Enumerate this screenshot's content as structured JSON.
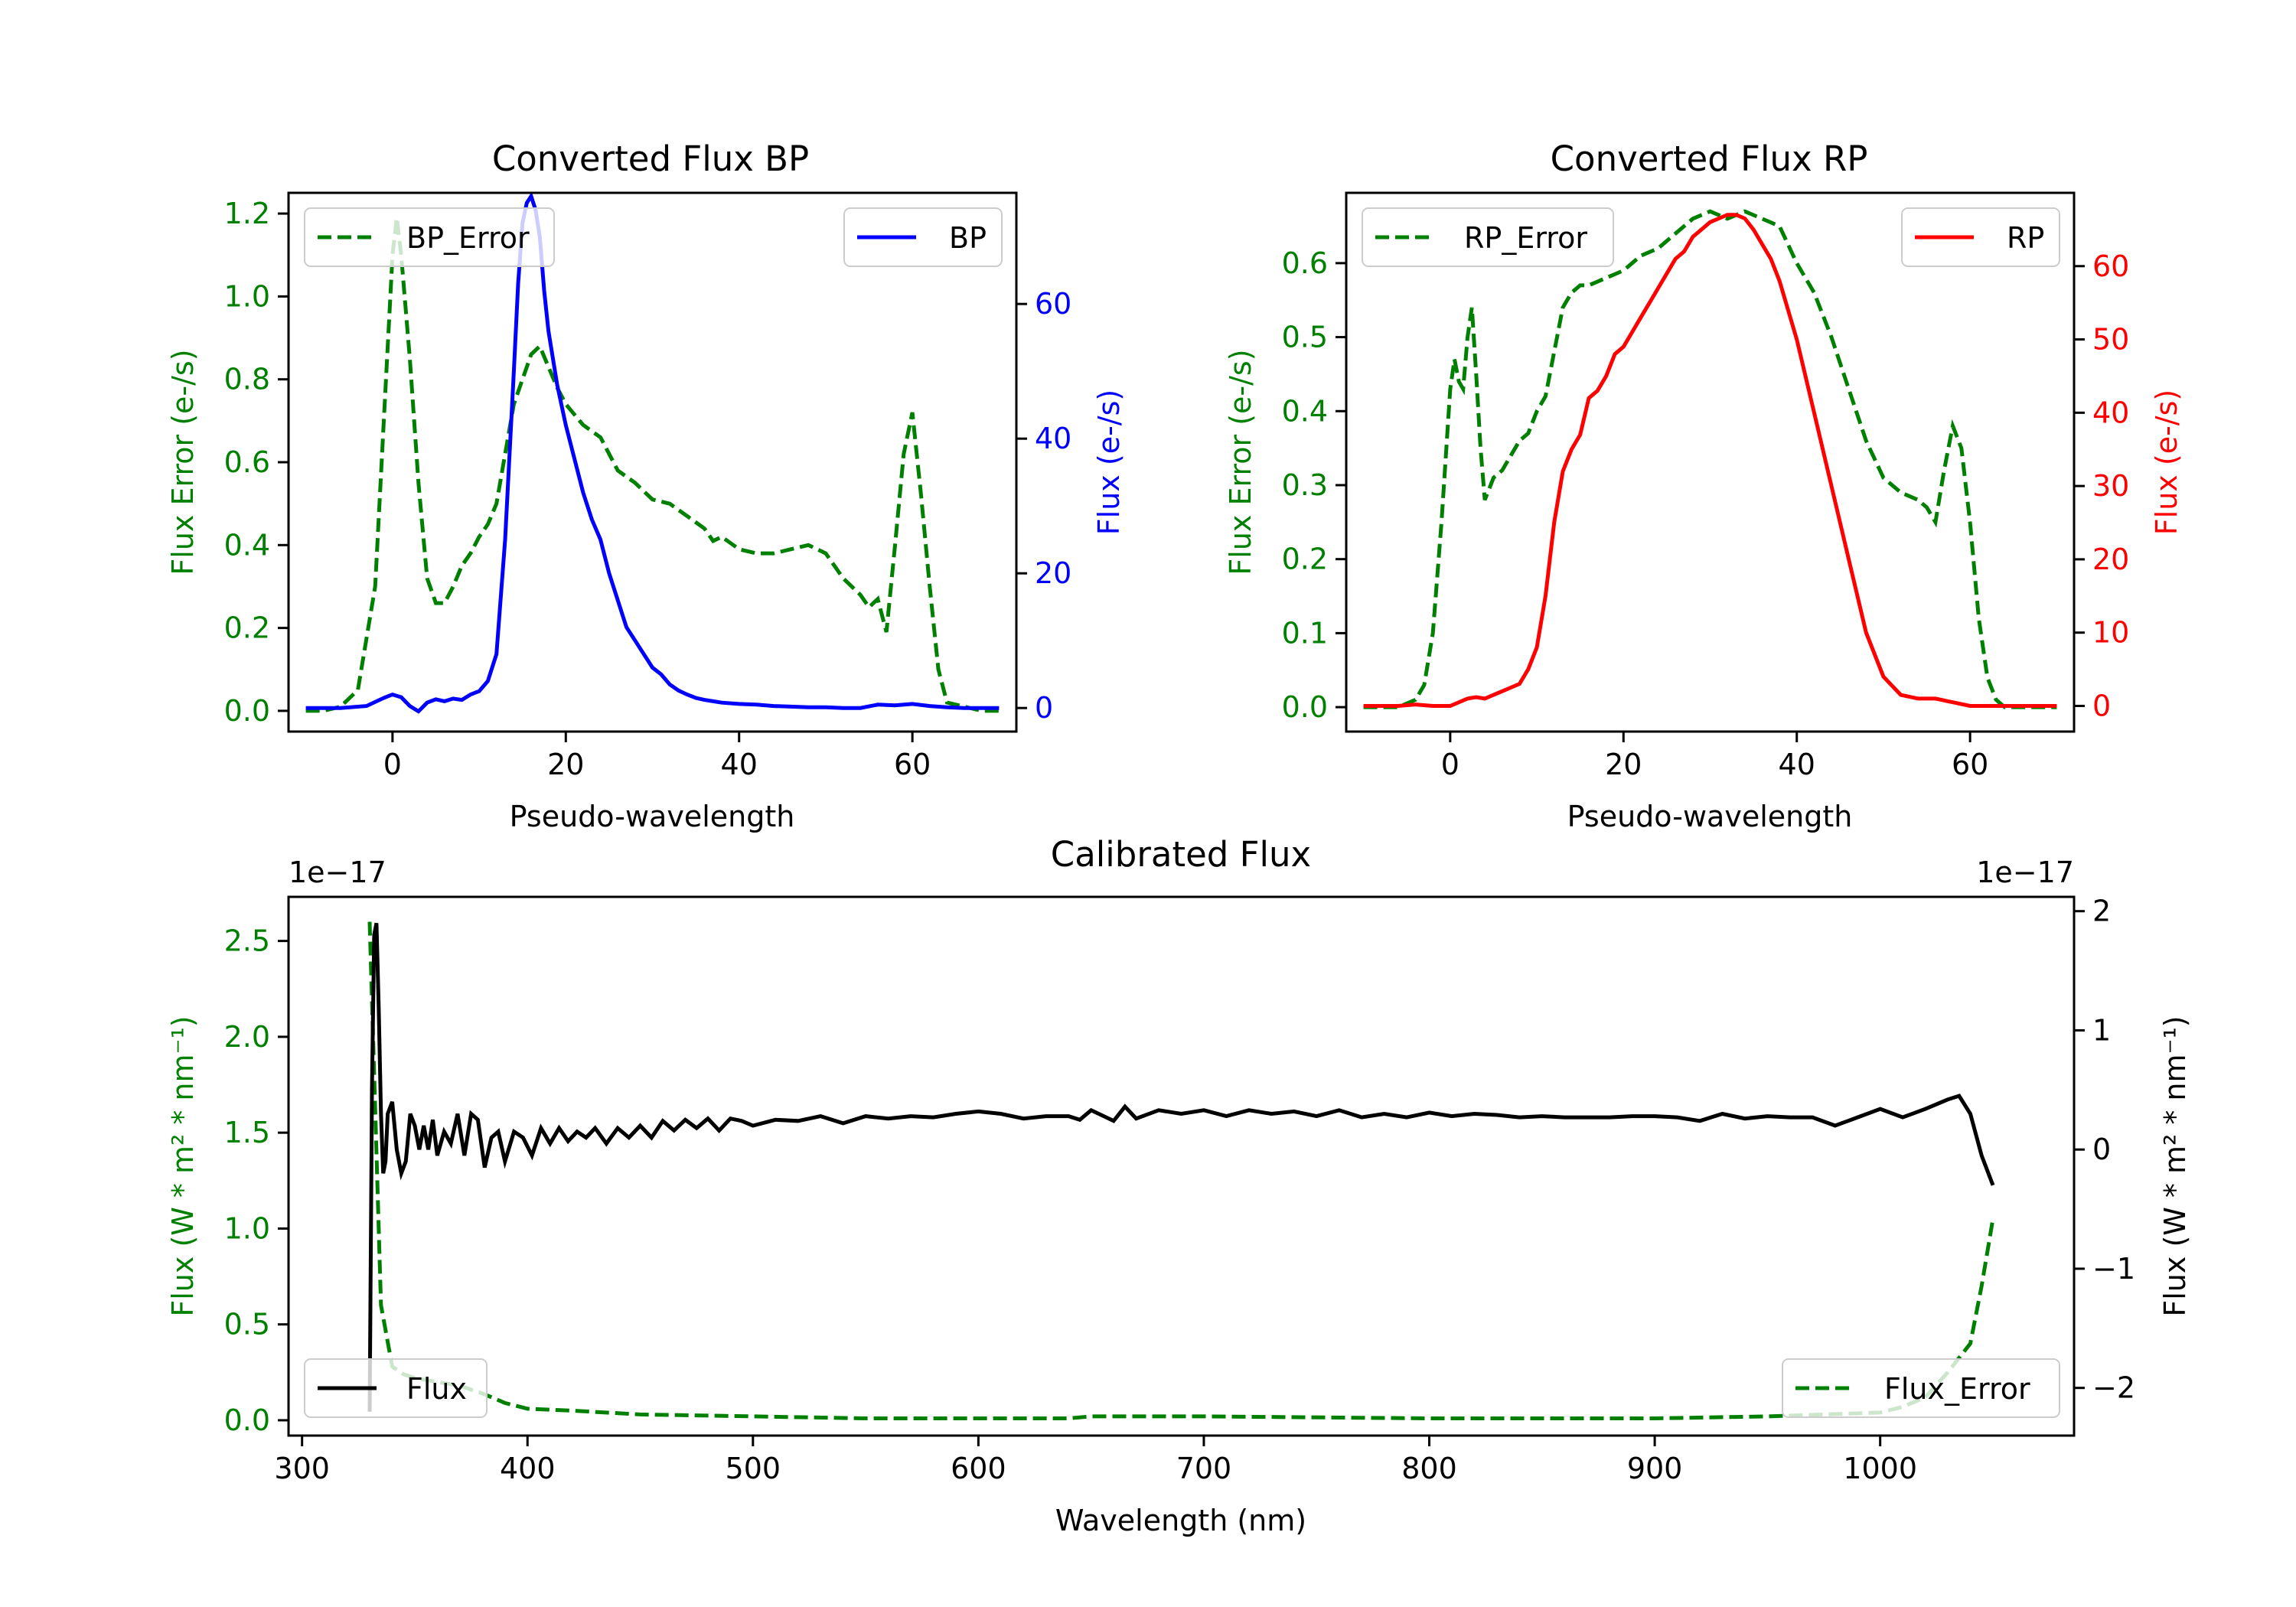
{
  "colors": {
    "green": "#008000",
    "blue": "#0000ff",
    "red": "#ff0000",
    "black": "#000000"
  },
  "chart_data": [
    {
      "id": "bp",
      "type": "line",
      "title": "Converted Flux BP",
      "xlabel": "Pseudo-wavelength",
      "ylabel_left": "Flux Error (e-/s)",
      "ylabel_right": "Flux (e-/s)",
      "xlim": [
        -12,
        72
      ],
      "ylim_left": [
        -0.05,
        1.25
      ],
      "ylim_right": [
        -3.5,
        76.5
      ],
      "xticks": [
        0,
        20,
        40,
        60
      ],
      "yticks_left": [
        0.0,
        0.2,
        0.4,
        0.6,
        0.8,
        1.0,
        1.2
      ],
      "yticks_right": [
        0,
        20,
        40,
        60
      ],
      "series": [
        {
          "name": "BP_Error",
          "axis": "left",
          "color": "green",
          "style": "dashed",
          "x": [
            -10,
            -8,
            -6,
            -4,
            -2,
            -1,
            0,
            0.5,
            1,
            2,
            3,
            4,
            5,
            6,
            7,
            8,
            9,
            10,
            11,
            12,
            13,
            14,
            15,
            16,
            17,
            18,
            19,
            20,
            22,
            24,
            26,
            28,
            30,
            32,
            34,
            36,
            37,
            38,
            40,
            42,
            44,
            46,
            48,
            50,
            52,
            54,
            55,
            56,
            57,
            58,
            59,
            60,
            61,
            62,
            63,
            64,
            66,
            68,
            70
          ],
          "y": [
            0,
            0,
            0.01,
            0.05,
            0.3,
            0.7,
            1.1,
            1.19,
            1.1,
            0.85,
            0.55,
            0.32,
            0.26,
            0.26,
            0.3,
            0.35,
            0.38,
            0.42,
            0.45,
            0.5,
            0.62,
            0.74,
            0.8,
            0.86,
            0.88,
            0.83,
            0.78,
            0.74,
            0.69,
            0.66,
            0.58,
            0.55,
            0.51,
            0.5,
            0.47,
            0.44,
            0.41,
            0.42,
            0.39,
            0.38,
            0.38,
            0.39,
            0.4,
            0.38,
            0.32,
            0.28,
            0.25,
            0.27,
            0.19,
            0.4,
            0.62,
            0.72,
            0.52,
            0.3,
            0.1,
            0.02,
            0.01,
            0.0,
            0.0
          ]
        },
        {
          "name": "BP",
          "axis": "right",
          "color": "blue",
          "style": "solid",
          "x": [
            -10,
            -6,
            -3,
            -1,
            0,
            1,
            2,
            3,
            4,
            5,
            6,
            7,
            8,
            9,
            10,
            11,
            12,
            13,
            14,
            14.5,
            15,
            15.5,
            16,
            16.5,
            17,
            17.5,
            18,
            19,
            20,
            21,
            22,
            23,
            24,
            25,
            26,
            27,
            28,
            29,
            30,
            31,
            32,
            33,
            34,
            35,
            36,
            37,
            38,
            40,
            42,
            44,
            46,
            48,
            50,
            52,
            54,
            56,
            58,
            60,
            62,
            64,
            66,
            68,
            70
          ],
          "y": [
            0,
            0,
            0.3,
            1.5,
            2,
            1.6,
            0.3,
            -0.5,
            0.8,
            1.3,
            1,
            1.4,
            1.2,
            2,
            2.5,
            4,
            8,
            25,
            50,
            63,
            72,
            75,
            76,
            74,
            70,
            62,
            56,
            48,
            42,
            37,
            32,
            28,
            25,
            20,
            16,
            12,
            10,
            8,
            6,
            5,
            3.5,
            2.6,
            2,
            1.5,
            1.2,
            1,
            0.8,
            0.6,
            0.5,
            0.3,
            0.2,
            0.1,
            0.1,
            0,
            0,
            0.5,
            0.4,
            0.6,
            0.3,
            0.1,
            0,
            0,
            0
          ]
        }
      ],
      "legend": [
        {
          "label": "BP_Error",
          "position": "upper left"
        },
        {
          "label": "BP",
          "position": "upper right"
        }
      ]
    },
    {
      "id": "rp",
      "type": "line",
      "title": "Converted Flux RP",
      "xlabel": "Pseudo-wavelength",
      "ylabel_left": "Flux Error (e-/s)",
      "ylabel_right": "Flux (e-/s)",
      "xlim": [
        -12,
        72
      ],
      "ylim_left": [
        -0.033,
        0.695
      ],
      "ylim_right": [
        -3.5,
        70
      ],
      "xticks": [
        0,
        20,
        40,
        60
      ],
      "yticks_left": [
        0.0,
        0.1,
        0.2,
        0.3,
        0.4,
        0.5,
        0.6
      ],
      "yticks_right": [
        0,
        10,
        20,
        30,
        40,
        50,
        60
      ],
      "series": [
        {
          "name": "RP_Error",
          "axis": "left",
          "color": "green",
          "style": "dashed",
          "x": [
            -10,
            -6,
            -4,
            -3,
            -2,
            -1,
            0,
            0.5,
            1,
            1.5,
            2,
            2.5,
            3,
            3.5,
            4,
            5,
            6,
            7,
            8,
            9,
            10,
            11,
            12,
            13,
            14,
            15,
            16,
            18,
            20,
            22,
            24,
            26,
            28,
            30,
            32,
            34,
            36,
            38,
            40,
            42,
            44,
            46,
            48,
            50,
            52,
            54,
            55,
            56,
            57,
            58,
            59,
            60,
            61,
            62,
            63,
            64,
            66,
            68,
            70
          ],
          "y": [
            0,
            0,
            0.01,
            0.03,
            0.1,
            0.25,
            0.43,
            0.47,
            0.44,
            0.43,
            0.5,
            0.54,
            0.45,
            0.35,
            0.28,
            0.31,
            0.32,
            0.34,
            0.36,
            0.37,
            0.4,
            0.42,
            0.48,
            0.54,
            0.56,
            0.57,
            0.57,
            0.58,
            0.59,
            0.61,
            0.62,
            0.64,
            0.66,
            0.67,
            0.66,
            0.67,
            0.66,
            0.65,
            0.6,
            0.56,
            0.5,
            0.43,
            0.36,
            0.31,
            0.29,
            0.28,
            0.27,
            0.25,
            0.32,
            0.38,
            0.35,
            0.25,
            0.12,
            0.04,
            0.01,
            0,
            0,
            0,
            0
          ]
        },
        {
          "name": "RP",
          "axis": "right",
          "color": "red",
          "style": "solid",
          "x": [
            -10,
            -6,
            -4,
            -2,
            0,
            2,
            3,
            4,
            5,
            6,
            7,
            8,
            9,
            10,
            11,
            12,
            13,
            14,
            15,
            16,
            17,
            18,
            19,
            20,
            21,
            22,
            23,
            24,
            25,
            26,
            27,
            28,
            29,
            30,
            31,
            32,
            33,
            34,
            35,
            36,
            37,
            38,
            40,
            42,
            44,
            46,
            48,
            50,
            52,
            54,
            56,
            58,
            60,
            62,
            64,
            66,
            68,
            70
          ],
          "y": [
            0,
            0,
            0.2,
            0,
            0,
            1,
            1.2,
            1,
            1.5,
            2,
            2.5,
            3,
            5,
            8,
            15,
            25,
            32,
            35,
            37,
            42,
            43,
            45,
            48,
            49,
            51,
            53,
            55,
            57,
            59,
            61,
            62,
            64,
            65,
            66,
            66.5,
            67,
            67,
            66.5,
            65,
            63,
            61,
            58,
            50,
            40,
            30,
            20,
            10,
            4,
            1.5,
            1,
            1,
            0.5,
            0,
            0,
            0,
            0,
            0,
            0
          ]
        }
      ],
      "legend": [
        {
          "label": "RP_Error",
          "position": "upper left"
        },
        {
          "label": "RP",
          "position": "upper right"
        }
      ]
    },
    {
      "id": "cal",
      "type": "line",
      "title": "Calibrated Flux",
      "xlabel": "Wavelength (nm)",
      "ylabel_left": "Flux (W * m² * nm⁻¹)",
      "ylabel_right": "Flux (W * m² * nm⁻¹)",
      "scale_left": "1e−17",
      "scale_right": "1e−17",
      "xlim": [
        294,
        1086
      ],
      "ylim_left": [
        -0.08,
        2.73
      ],
      "ylim_right": [
        -2.4,
        2.12
      ],
      "xticks": [
        300,
        400,
        500,
        600,
        700,
        800,
        900,
        1000
      ],
      "yticks_left": [
        0.0,
        0.5,
        1.0,
        1.5,
        2.0,
        2.5
      ],
      "yticks_right": [
        -2,
        -1,
        0,
        1,
        2
      ],
      "series": [
        {
          "name": "Flux_Error",
          "axis": "left",
          "color": "green",
          "style": "dashed",
          "x": [
            330,
            332,
            335,
            340,
            345,
            350,
            360,
            370,
            380,
            390,
            400,
            420,
            450,
            500,
            550,
            600,
            640,
            650,
            700,
            800,
            900,
            950,
            1000,
            1010,
            1020,
            1030,
            1040,
            1045,
            1050
          ],
          "y": [
            2.6,
            1.8,
            0.6,
            0.28,
            0.24,
            0.22,
            0.2,
            0.18,
            0.14,
            0.09,
            0.06,
            0.05,
            0.03,
            0.02,
            0.01,
            0.01,
            0.01,
            0.02,
            0.02,
            0.01,
            0.01,
            0.02,
            0.04,
            0.07,
            0.12,
            0.25,
            0.4,
            0.7,
            1.05
          ]
        },
        {
          "name": "Flux",
          "axis": "right",
          "color": "black",
          "style": "solid",
          "x": [
            330,
            331,
            332,
            333,
            334,
            335,
            336,
            337,
            338,
            340,
            342,
            344,
            346,
            348,
            350,
            352,
            354,
            356,
            358,
            360,
            363,
            366,
            369,
            372,
            375,
            378,
            381,
            384,
            387,
            390,
            394,
            398,
            402,
            406,
            410,
            414,
            418,
            422,
            426,
            430,
            435,
            440,
            445,
            450,
            455,
            460,
            465,
            470,
            475,
            480,
            485,
            490,
            495,
            500,
            510,
            520,
            530,
            540,
            550,
            560,
            570,
            580,
            590,
            600,
            610,
            620,
            630,
            640,
            645,
            650,
            660,
            665,
            670,
            680,
            690,
            700,
            710,
            720,
            730,
            740,
            750,
            760,
            770,
            780,
            790,
            800,
            810,
            820,
            830,
            840,
            850,
            860,
            870,
            880,
            890,
            900,
            910,
            920,
            930,
            940,
            950,
            960,
            970,
            980,
            990,
            1000,
            1010,
            1020,
            1030,
            1035,
            1040,
            1045,
            1050
          ],
          "y": [
            -2.2,
            0.5,
            1.8,
            1.9,
            1.2,
            0.3,
            -0.2,
            -0.1,
            0.3,
            0.4,
            0,
            -0.2,
            -0.1,
            0.3,
            0.2,
            0,
            0.2,
            0,
            0.25,
            -0.05,
            0.15,
            0.05,
            0.3,
            -0.05,
            0.3,
            0.25,
            -0.15,
            0.1,
            0.15,
            -0.1,
            0.15,
            0.1,
            -0.05,
            0.18,
            0.05,
            0.18,
            0.07,
            0.15,
            0.1,
            0.18,
            0.05,
            0.18,
            0.1,
            0.2,
            0.1,
            0.24,
            0.16,
            0.25,
            0.18,
            0.26,
            0.16,
            0.26,
            0.24,
            0.2,
            0.25,
            0.24,
            0.28,
            0.22,
            0.28,
            0.26,
            0.28,
            0.27,
            0.3,
            0.32,
            0.3,
            0.26,
            0.28,
            0.28,
            0.25,
            0.33,
            0.24,
            0.36,
            0.26,
            0.33,
            0.3,
            0.33,
            0.28,
            0.33,
            0.3,
            0.32,
            0.28,
            0.33,
            0.27,
            0.3,
            0.27,
            0.31,
            0.28,
            0.3,
            0.29,
            0.27,
            0.28,
            0.27,
            0.27,
            0.27,
            0.28,
            0.28,
            0.27,
            0.24,
            0.3,
            0.26,
            0.28,
            0.27,
            0.27,
            0.2,
            0.27,
            0.34,
            0.27,
            0.34,
            0.42,
            0.45,
            0.3,
            -0.05,
            -0.3
          ]
        }
      ],
      "legend": [
        {
          "label": "Flux",
          "position": "lower left"
        },
        {
          "label": "Flux_Error",
          "position": "lower right"
        }
      ]
    }
  ]
}
